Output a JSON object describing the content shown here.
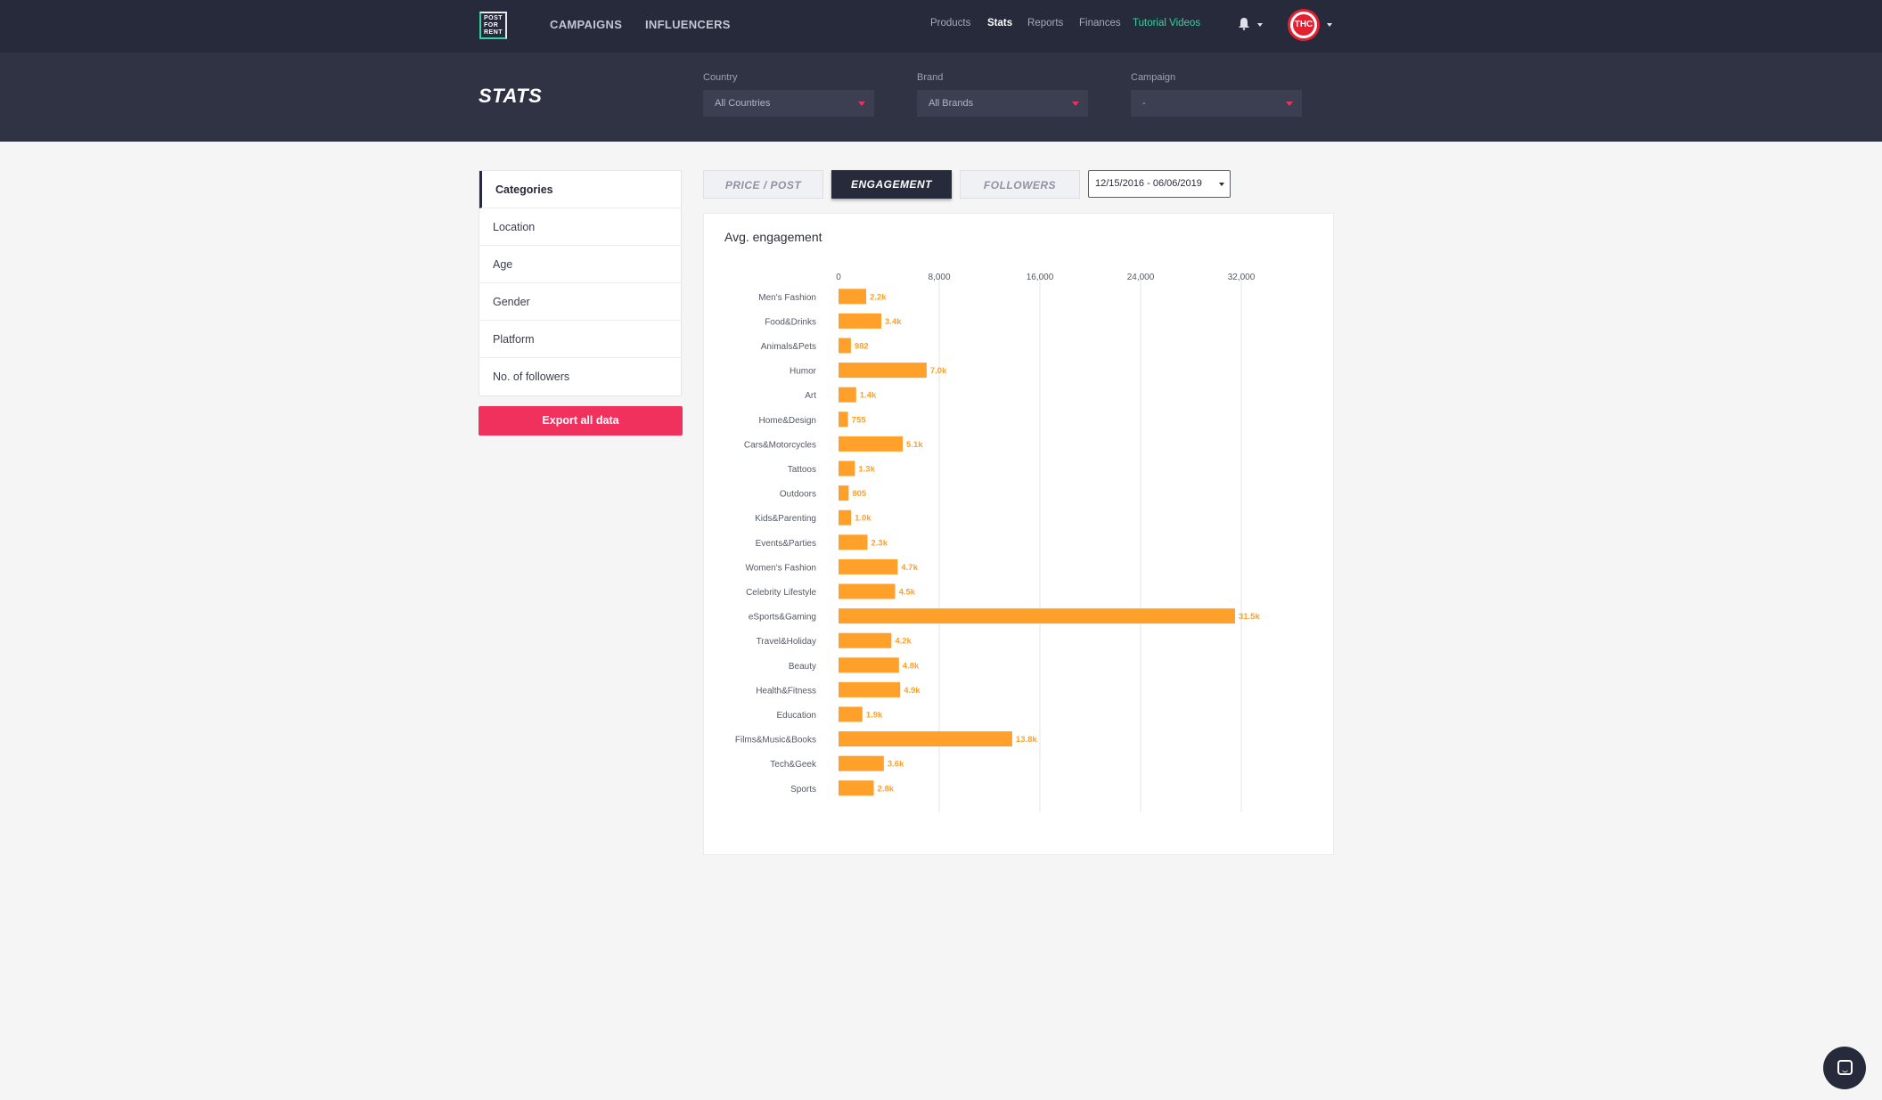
{
  "nav": {
    "logo_text": "POST FOR RENT",
    "main_items": [
      "CAMPAIGNS",
      "INFLUENCERS"
    ],
    "sub_items": [
      "Products",
      "Stats",
      "Reports",
      "Finances",
      "Tutorial Videos"
    ],
    "active_sub": "Stats",
    "avatar_text": "THC",
    "icons": [
      "bell-icon",
      "chevron-down-icon"
    ]
  },
  "header": {
    "title": "STATS",
    "filters": [
      {
        "label": "Country",
        "value": "All Countries"
      },
      {
        "label": "Brand",
        "value": "All Brands"
      },
      {
        "label": "Campaign",
        "value": "-"
      }
    ]
  },
  "sidebar": {
    "items": [
      "Categories",
      "Location",
      "Age",
      "Gender",
      "Platform",
      "No. of followers"
    ],
    "active": "Categories",
    "export_label": "Export all data"
  },
  "tabs": {
    "items": [
      "PRICE / POST",
      "ENGAGEMENT",
      "FOLLOWERS"
    ],
    "active": "ENGAGEMENT",
    "date_range": "12/15/2016 - 06/06/2019"
  },
  "colors": {
    "bar": "#ffa02b",
    "accent": "#f0305d",
    "nav_bg": "#262a3a",
    "tutorial": "#35d3a0"
  },
  "chart_data": {
    "type": "bar",
    "orientation": "horizontal",
    "title": "Avg. engagement",
    "xlim": [
      0,
      32000
    ],
    "ticks": [
      "0",
      "8,000",
      "16,000",
      "24,000",
      "32,000"
    ],
    "tick_values": [
      0,
      8000,
      16000,
      24000,
      32000
    ],
    "grid": true,
    "categories": [
      "Men's Fashion",
      "Food&Drinks",
      "Animals&Pets",
      "Humor",
      "Art",
      "Home&Design",
      "Cars&Motorcycles",
      "Tattoos",
      "Outdoors",
      "Kids&Parenting",
      "Events&Parties",
      "Women's Fashion",
      "Celebrity Lifestyle",
      "eSports&Gaming",
      "Travel&Holiday",
      "Beauty",
      "Health&Fitness",
      "Education",
      "Films&Music&Books",
      "Tech&Geek",
      "Sports"
    ],
    "values": [
      2200,
      3400,
      982,
      7000,
      1400,
      755,
      5100,
      1300,
      805,
      1000,
      2300,
      4700,
      4500,
      31500,
      4200,
      4800,
      4900,
      1900,
      13800,
      3600,
      2800
    ],
    "labels": [
      "2.2k",
      "3.4k",
      "982",
      "7.0k",
      "1.4k",
      "755",
      "5.1k",
      "1.3k",
      "805",
      "1.0k",
      "2.3k",
      "4.7k",
      "4.5k",
      "31.5k",
      "4.2k",
      "4.8k",
      "4.9k",
      "1.9k",
      "13.8k",
      "3.6k",
      "2.8k"
    ]
  }
}
